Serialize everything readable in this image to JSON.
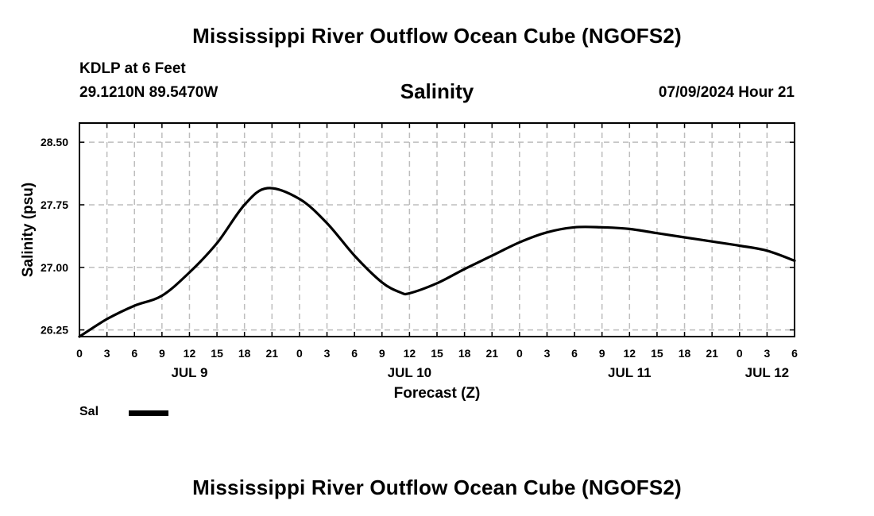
{
  "header": {
    "title": "Mississippi River Outflow Ocean Cube (NGOFS2)",
    "station": "KDLP at 6 Feet",
    "coords": "29.1210N  89.5470W",
    "variable": "Salinity",
    "datetime": "07/09/2024 Hour 21"
  },
  "footer": {
    "title": "Mississippi River Outflow Ocean Cube (NGOFS2)"
  },
  "legend": {
    "label": "Sal",
    "color": "#000000"
  },
  "chart_data": {
    "type": "line",
    "title": "Salinity",
    "xlabel": "Forecast (Z)",
    "ylabel": "Salinity (psu)",
    "ylim": [
      26.17,
      28.73
    ],
    "yticks": [
      26.25,
      27.0,
      27.75,
      28.5
    ],
    "ytick_labels": [
      "26.25",
      "27.00",
      "27.75",
      "28.50"
    ],
    "xlim": [
      0,
      78
    ],
    "x_unit": "hours from 2024-07-09 00Z",
    "xtick_step_hours": 3,
    "xtick_labels": [
      "0",
      "3",
      "6",
      "9",
      "12",
      "15",
      "18",
      "21",
      "0",
      "3",
      "6",
      "9",
      "12",
      "15",
      "18",
      "21",
      "0",
      "3",
      "6",
      "9",
      "12",
      "15",
      "18",
      "21",
      "0",
      "3",
      "6"
    ],
    "date_labels": [
      {
        "label": "JUL 9",
        "hour": 12
      },
      {
        "label": "JUL 10",
        "hour": 36
      },
      {
        "label": "JUL 11",
        "hour": 60
      },
      {
        "label": "JUL 12",
        "hour": 75
      }
    ],
    "grid": true,
    "series": [
      {
        "name": "Sal",
        "color": "#000000",
        "x": [
          0,
          3,
          6,
          9,
          12,
          15,
          18,
          20.5,
          24,
          27,
          30,
          33,
          35,
          36,
          39,
          42,
          45,
          48,
          51,
          54,
          57,
          60,
          63,
          66,
          69,
          72,
          75,
          78
        ],
        "y": [
          26.17,
          26.38,
          26.54,
          26.66,
          26.94,
          27.29,
          27.75,
          27.95,
          27.82,
          27.53,
          27.14,
          26.82,
          26.7,
          26.69,
          26.81,
          26.98,
          27.14,
          27.3,
          27.42,
          27.48,
          27.48,
          27.46,
          27.41,
          27.36,
          27.31,
          27.26,
          27.2,
          27.08
        ]
      }
    ]
  }
}
